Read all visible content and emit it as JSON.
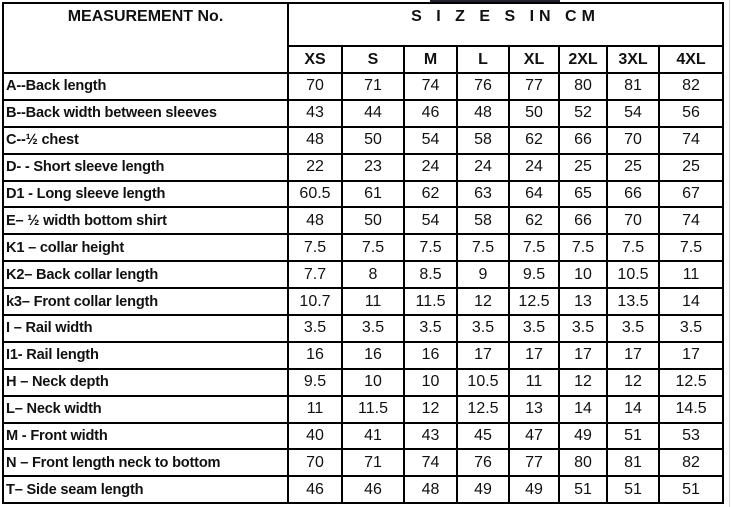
{
  "header": {
    "measurement_label": "MEASUREMENT No.",
    "sizes_label": "S I Z E S  IN  CM"
  },
  "sizes": [
    "XS",
    "S",
    "M",
    "L",
    "XL",
    "2XL",
    "3XL",
    "4XL"
  ],
  "rows": [
    {
      "label": "A--Back length",
      "values": [
        "70",
        "71",
        "74",
        "76",
        "77",
        "80",
        "81",
        "82"
      ]
    },
    {
      "label": "B--Back width between sleeves",
      "values": [
        "43",
        "44",
        "46",
        "48",
        "50",
        "52",
        "54",
        "56"
      ]
    },
    {
      "label": "C--½ chest",
      "values": [
        "48",
        "50",
        "54",
        "58",
        "62",
        "66",
        "70",
        "74"
      ]
    },
    {
      "label": "D- - Short sleeve length",
      "values": [
        "22",
        "23",
        "24",
        "24",
        "24",
        "25",
        "25",
        "25"
      ]
    },
    {
      "label": "D1 - Long sleeve length",
      "values": [
        "60.5",
        "61",
        "62",
        "63",
        "64",
        "65",
        "66",
        "67"
      ]
    },
    {
      "label": "E– ½ width bottom shirt",
      "values": [
        "48",
        "50",
        "54",
        "58",
        "62",
        "66",
        "70",
        "74"
      ]
    },
    {
      "label": "K1 –  collar height",
      "values": [
        "7.5",
        "7.5",
        "7.5",
        "7.5",
        "7.5",
        "7.5",
        "7.5",
        "7.5"
      ]
    },
    {
      "label": "K2– Back collar length",
      "values": [
        "7.7",
        "8",
        "8.5",
        "9",
        "9.5",
        "10",
        "10.5",
        "11"
      ]
    },
    {
      "label": "k3– Front collar length",
      "values": [
        "10.7",
        "11",
        "11.5",
        "12",
        "12.5",
        "13",
        "13.5",
        "14"
      ]
    },
    {
      "label": "I – Rail width",
      "values": [
        "3.5",
        "3.5",
        "3.5",
        "3.5",
        "3.5",
        "3.5",
        "3.5",
        "3.5"
      ]
    },
    {
      "label": "I1- Rail length",
      "values": [
        "16",
        "16",
        "16",
        "17",
        "17",
        "17",
        "17",
        "17"
      ]
    },
    {
      "label": "H – Neck depth",
      "values": [
        "9.5",
        "10",
        "10",
        "10.5",
        "11",
        "12",
        "12",
        "12.5"
      ]
    },
    {
      "label": "L– Neck width",
      "values": [
        "11",
        "11.5",
        "12",
        "12.5",
        "13",
        "14",
        "14",
        "14.5"
      ]
    },
    {
      "label": "M  - Front  width",
      "values": [
        "40",
        "41",
        "43",
        "45",
        "47",
        "49",
        "51",
        "53"
      ]
    },
    {
      "label": "N – Front length neck to bottom",
      "values": [
        "70",
        "71",
        "74",
        "76",
        "77",
        "80",
        "81",
        "82"
      ]
    },
    {
      "label": "T– Side seam length",
      "values": [
        "46",
        "46",
        "48",
        "49",
        "49",
        "51",
        "51",
        "51"
      ]
    }
  ]
}
